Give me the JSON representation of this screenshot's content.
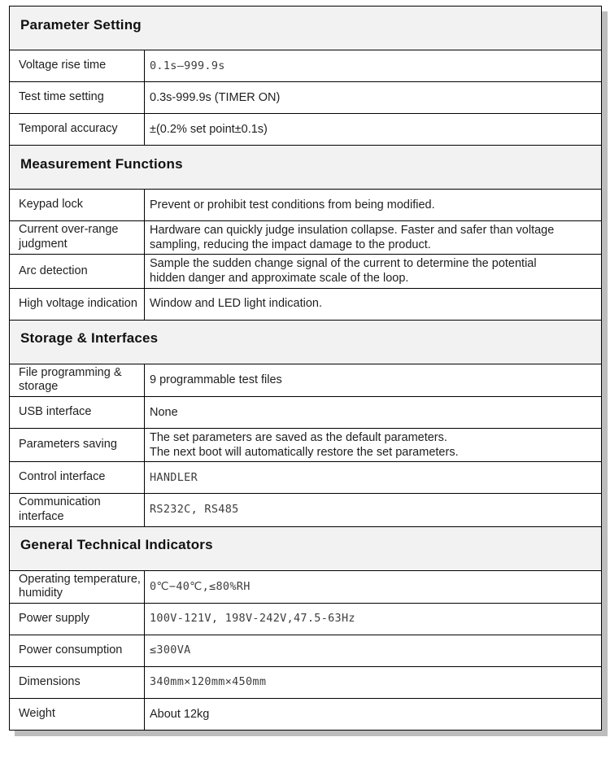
{
  "colors": {
    "border": "#000000",
    "section_header_bg": "#f2f2f2",
    "shadow": "#bdbdbd",
    "text": "#1f1f1f"
  },
  "sections": [
    {
      "title": "Parameter Setting",
      "rows": [
        {
          "label": "Voltage rise time",
          "value": "0.1s–999.9s"
        },
        {
          "label": "Test time setting",
          "value": "0.3s-999.9s (TIMER ON)"
        },
        {
          "label": "Temporal accuracy",
          "value": "±(0.2% set point±0.1s)"
        }
      ]
    },
    {
      "title": "Measurement Functions",
      "rows": [
        {
          "label": "Keypad lock",
          "value": "Prevent or prohibit test conditions from being modified."
        },
        {
          "label": "Current over-range judgment",
          "value": "Hardware can quickly judge insulation collapse. Faster and safer than voltage sampling, reducing the impact damage to the product."
        },
        {
          "label": "Arc detection",
          "value": "Sample the sudden change signal of the current to determine the potential hidden danger and approximate scale of the loop."
        },
        {
          "label": "High voltage indication",
          "value": "Window and LED light indication."
        }
      ]
    },
    {
      "title": "Storage & Interfaces",
      "rows": [
        {
          "label": "File programming & storage",
          "value": "9 programmable test files"
        },
        {
          "label": "USB interface",
          "value": "None"
        },
        {
          "label": "Parameters saving",
          "value": "The set parameters are saved as the default parameters.\nThe next boot will automatically restore the set parameters."
        },
        {
          "label": "Control interface",
          "value": "HANDLER"
        },
        {
          "label": "Communication interface",
          "value": "RS232C, RS485"
        }
      ]
    },
    {
      "title": "General Technical Indicators",
      "rows": [
        {
          "label": "Operating temperature, humidity",
          "value": "0℃−40℃,≤80%RH"
        },
        {
          "label": "Power supply",
          "value": "100V-121V,  198V-242V,47.5-63Hz"
        },
        {
          "label": "Power consumption",
          "value": "≤300VA"
        },
        {
          "label": "Dimensions",
          "value": "340mm×120mm×450mm"
        },
        {
          "label": "Weight",
          "value": "About 12kg"
        }
      ]
    }
  ]
}
